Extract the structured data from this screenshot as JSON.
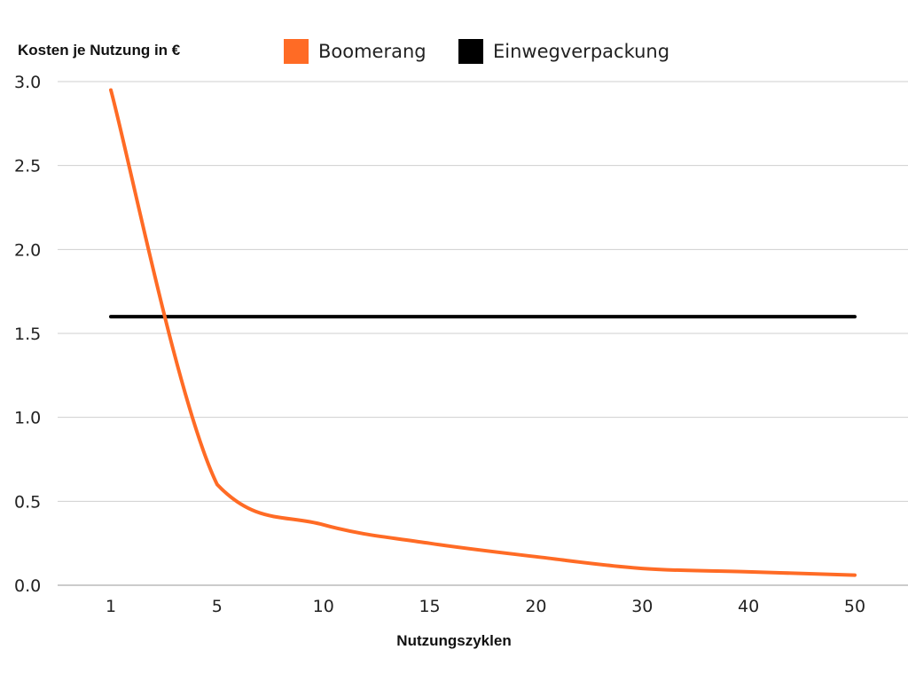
{
  "chart_data": {
    "type": "line",
    "ylabel": "Kosten je Nutzung in €",
    "xlabel": "Nutzungszyklen",
    "categories": [
      "1",
      "5",
      "10",
      "15",
      "20",
      "30",
      "40",
      "50"
    ],
    "ylim": [
      0,
      3.0
    ],
    "yticks": [
      "0.0",
      "0.5",
      "1.0",
      "1.5",
      "2.0",
      "2.5",
      "3.0"
    ],
    "grid": "horizontal",
    "legend_position": "top",
    "series": [
      {
        "name": "Boomerang",
        "color": "#FF6B25",
        "values": [
          2.95,
          0.6,
          0.36,
          0.25,
          0.17,
          0.1,
          0.08,
          0.06
        ]
      },
      {
        "name": "Einwegverpackung",
        "color": "#000000",
        "values": [
          1.6,
          1.6,
          1.6,
          1.6,
          1.6,
          1.6,
          1.6,
          1.6
        ]
      }
    ]
  }
}
